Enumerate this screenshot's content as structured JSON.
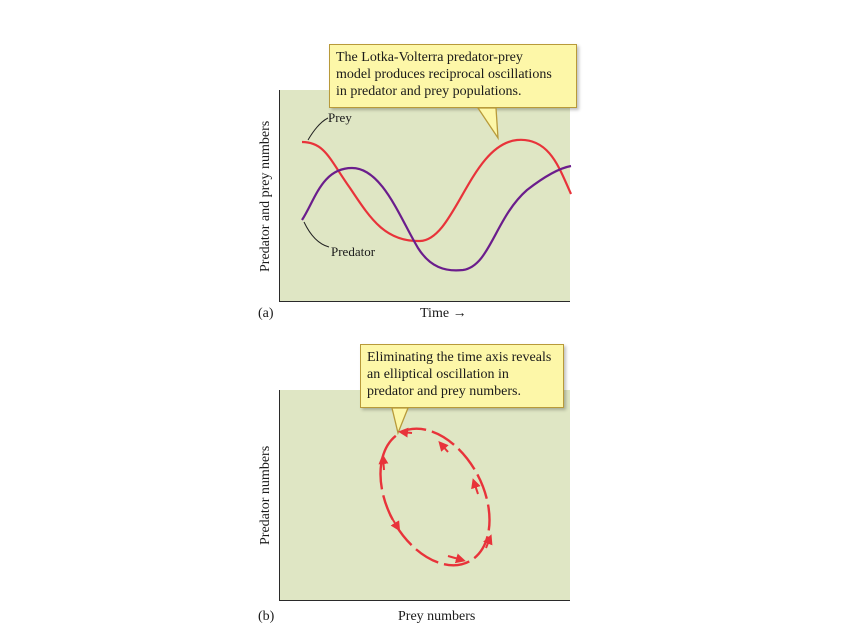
{
  "figure_a": {
    "panel_label": "(a)",
    "ylabel": "Predator and prey numbers",
    "xlabel": "Time",
    "callout_lines": [
      "The Lotka-Volterra predator-prey",
      "model produces reciprocal oscillations",
      "in predator and prey populations."
    ],
    "prey_label": "Prey",
    "predator_label": "Predator",
    "colors": {
      "prey": "#e8333a",
      "predator": "#6b1d8c",
      "panel_bg": "#dfe6c4",
      "callout_bg": "#fdf7a8"
    }
  },
  "figure_b": {
    "panel_label": "(b)",
    "ylabel": "Predator numbers",
    "xlabel": "Prey numbers",
    "callout_lines": [
      "Eliminating the time axis reveals",
      "an elliptical oscillation in",
      "predator and prey numbers."
    ],
    "colors": {
      "cycle": "#e8333a"
    }
  },
  "chart_data": [
    {
      "type": "line",
      "xlabel": "Time",
      "ylabel": "Predator and prey numbers",
      "series": [
        {
          "name": "Prey",
          "x": [
            0,
            0.1,
            0.2,
            0.3,
            0.4,
            0.5,
            0.6,
            0.7,
            0.8,
            0.9,
            1.0
          ],
          "values": [
            0.78,
            0.7,
            0.5,
            0.3,
            0.28,
            0.45,
            0.7,
            0.82,
            0.78,
            0.6,
            0.5
          ]
        },
        {
          "name": "Predator",
          "x": [
            0,
            0.1,
            0.2,
            0.3,
            0.4,
            0.5,
            0.6,
            0.7,
            0.8,
            0.9,
            1.0
          ],
          "values": [
            0.4,
            0.6,
            0.65,
            0.55,
            0.3,
            0.15,
            0.18,
            0.35,
            0.5,
            0.6,
            0.62
          ]
        }
      ]
    },
    {
      "type": "line",
      "xlabel": "Prey numbers",
      "ylabel": "Predator numbers",
      "series": [
        {
          "shape": "closed elliptical cycle with direction arrows"
        }
      ]
    }
  ]
}
